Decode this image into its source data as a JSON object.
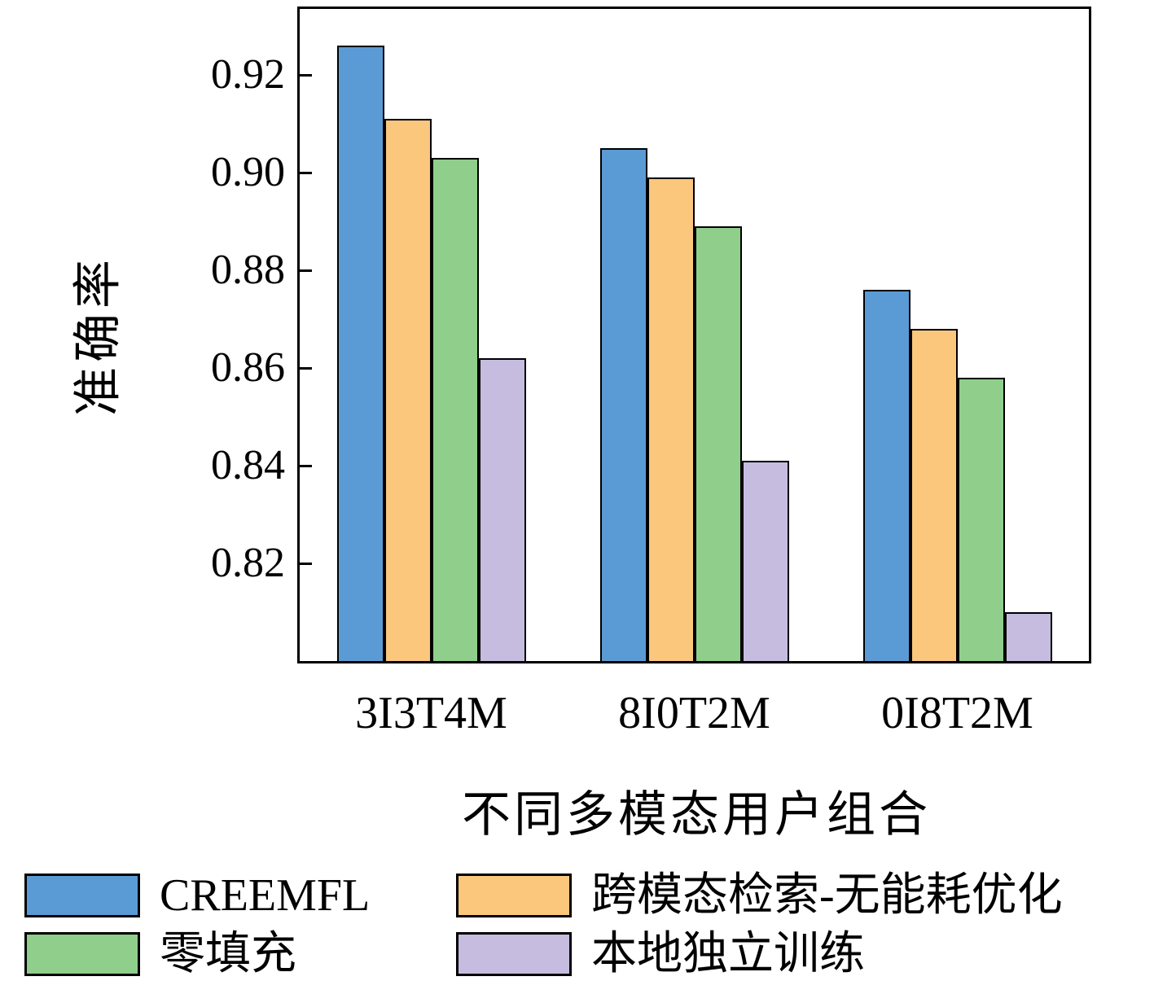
{
  "chart_data": {
    "type": "bar",
    "title": "",
    "xlabel": "不同多模态用户组合",
    "ylabel": "准确率",
    "categories": [
      "3I3T4M",
      "8I0T2M",
      "0I8T2M"
    ],
    "series": [
      {
        "name": "CREEMFL",
        "color": "#5B9BD5",
        "values": [
          0.926,
          0.905,
          0.876
        ]
      },
      {
        "name": "跨模态检索-无能耗优化",
        "color": "#FAC77D",
        "values": [
          0.911,
          0.899,
          0.868
        ]
      },
      {
        "name": "零填充",
        "color": "#8FCE8B",
        "values": [
          0.903,
          0.889,
          0.858
        ]
      },
      {
        "name": "本地独立训练",
        "color": "#C6BCE0",
        "values": [
          0.862,
          0.841,
          0.81
        ]
      }
    ],
    "ylim": [
      0.8,
      0.9335
    ],
    "yticks": [
      0.82,
      0.84,
      0.86,
      0.88,
      0.9,
      0.92
    ],
    "ytick_format_decimals": 2,
    "legend_position": "bottom",
    "grid": false,
    "axis_color": "#000000",
    "bar_edge_color": "#000000"
  }
}
